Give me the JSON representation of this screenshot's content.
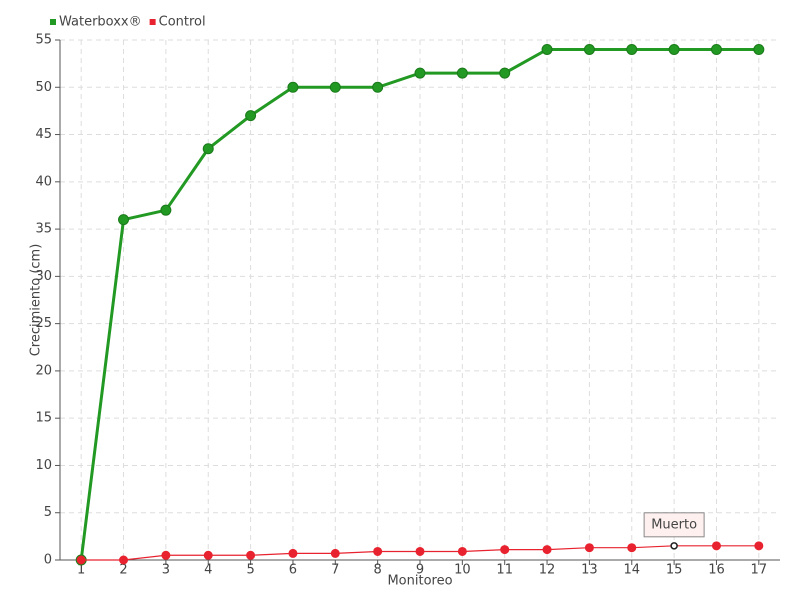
{
  "chart_data": {
    "type": "line",
    "x_label": "Monitoreo",
    "y_label": "Crecimiento (cm)",
    "categories": [
      "1",
      "2",
      "3",
      "4",
      "5",
      "6",
      "7",
      "8",
      "9",
      "10",
      "11",
      "12",
      "13",
      "14",
      "15",
      "16",
      "17"
    ],
    "series": [
      {
        "name": "Waterboxx®",
        "color": "#229922",
        "values": [
          0,
          36,
          37,
          43.5,
          47,
          50,
          50,
          50,
          51.5,
          51.5,
          51.5,
          54,
          54,
          54,
          54,
          54,
          54
        ]
      },
      {
        "name": "Control",
        "color": "#e8232f",
        "values": [
          0,
          0,
          0.5,
          0.5,
          0.5,
          0.7,
          0.7,
          0.9,
          0.9,
          0.9,
          1.1,
          1.1,
          1.3,
          1.3,
          1.5,
          1.5,
          1.5
        ],
        "annotations": [
          {
            "x": "15",
            "text": "Muerto"
          }
        ]
      }
    ],
    "ylim": [
      0,
      55
    ],
    "yticks": [
      0,
      5,
      10,
      15,
      20,
      25,
      30,
      35,
      40,
      45,
      50,
      55
    ],
    "grid": true,
    "legend": "top-left"
  }
}
